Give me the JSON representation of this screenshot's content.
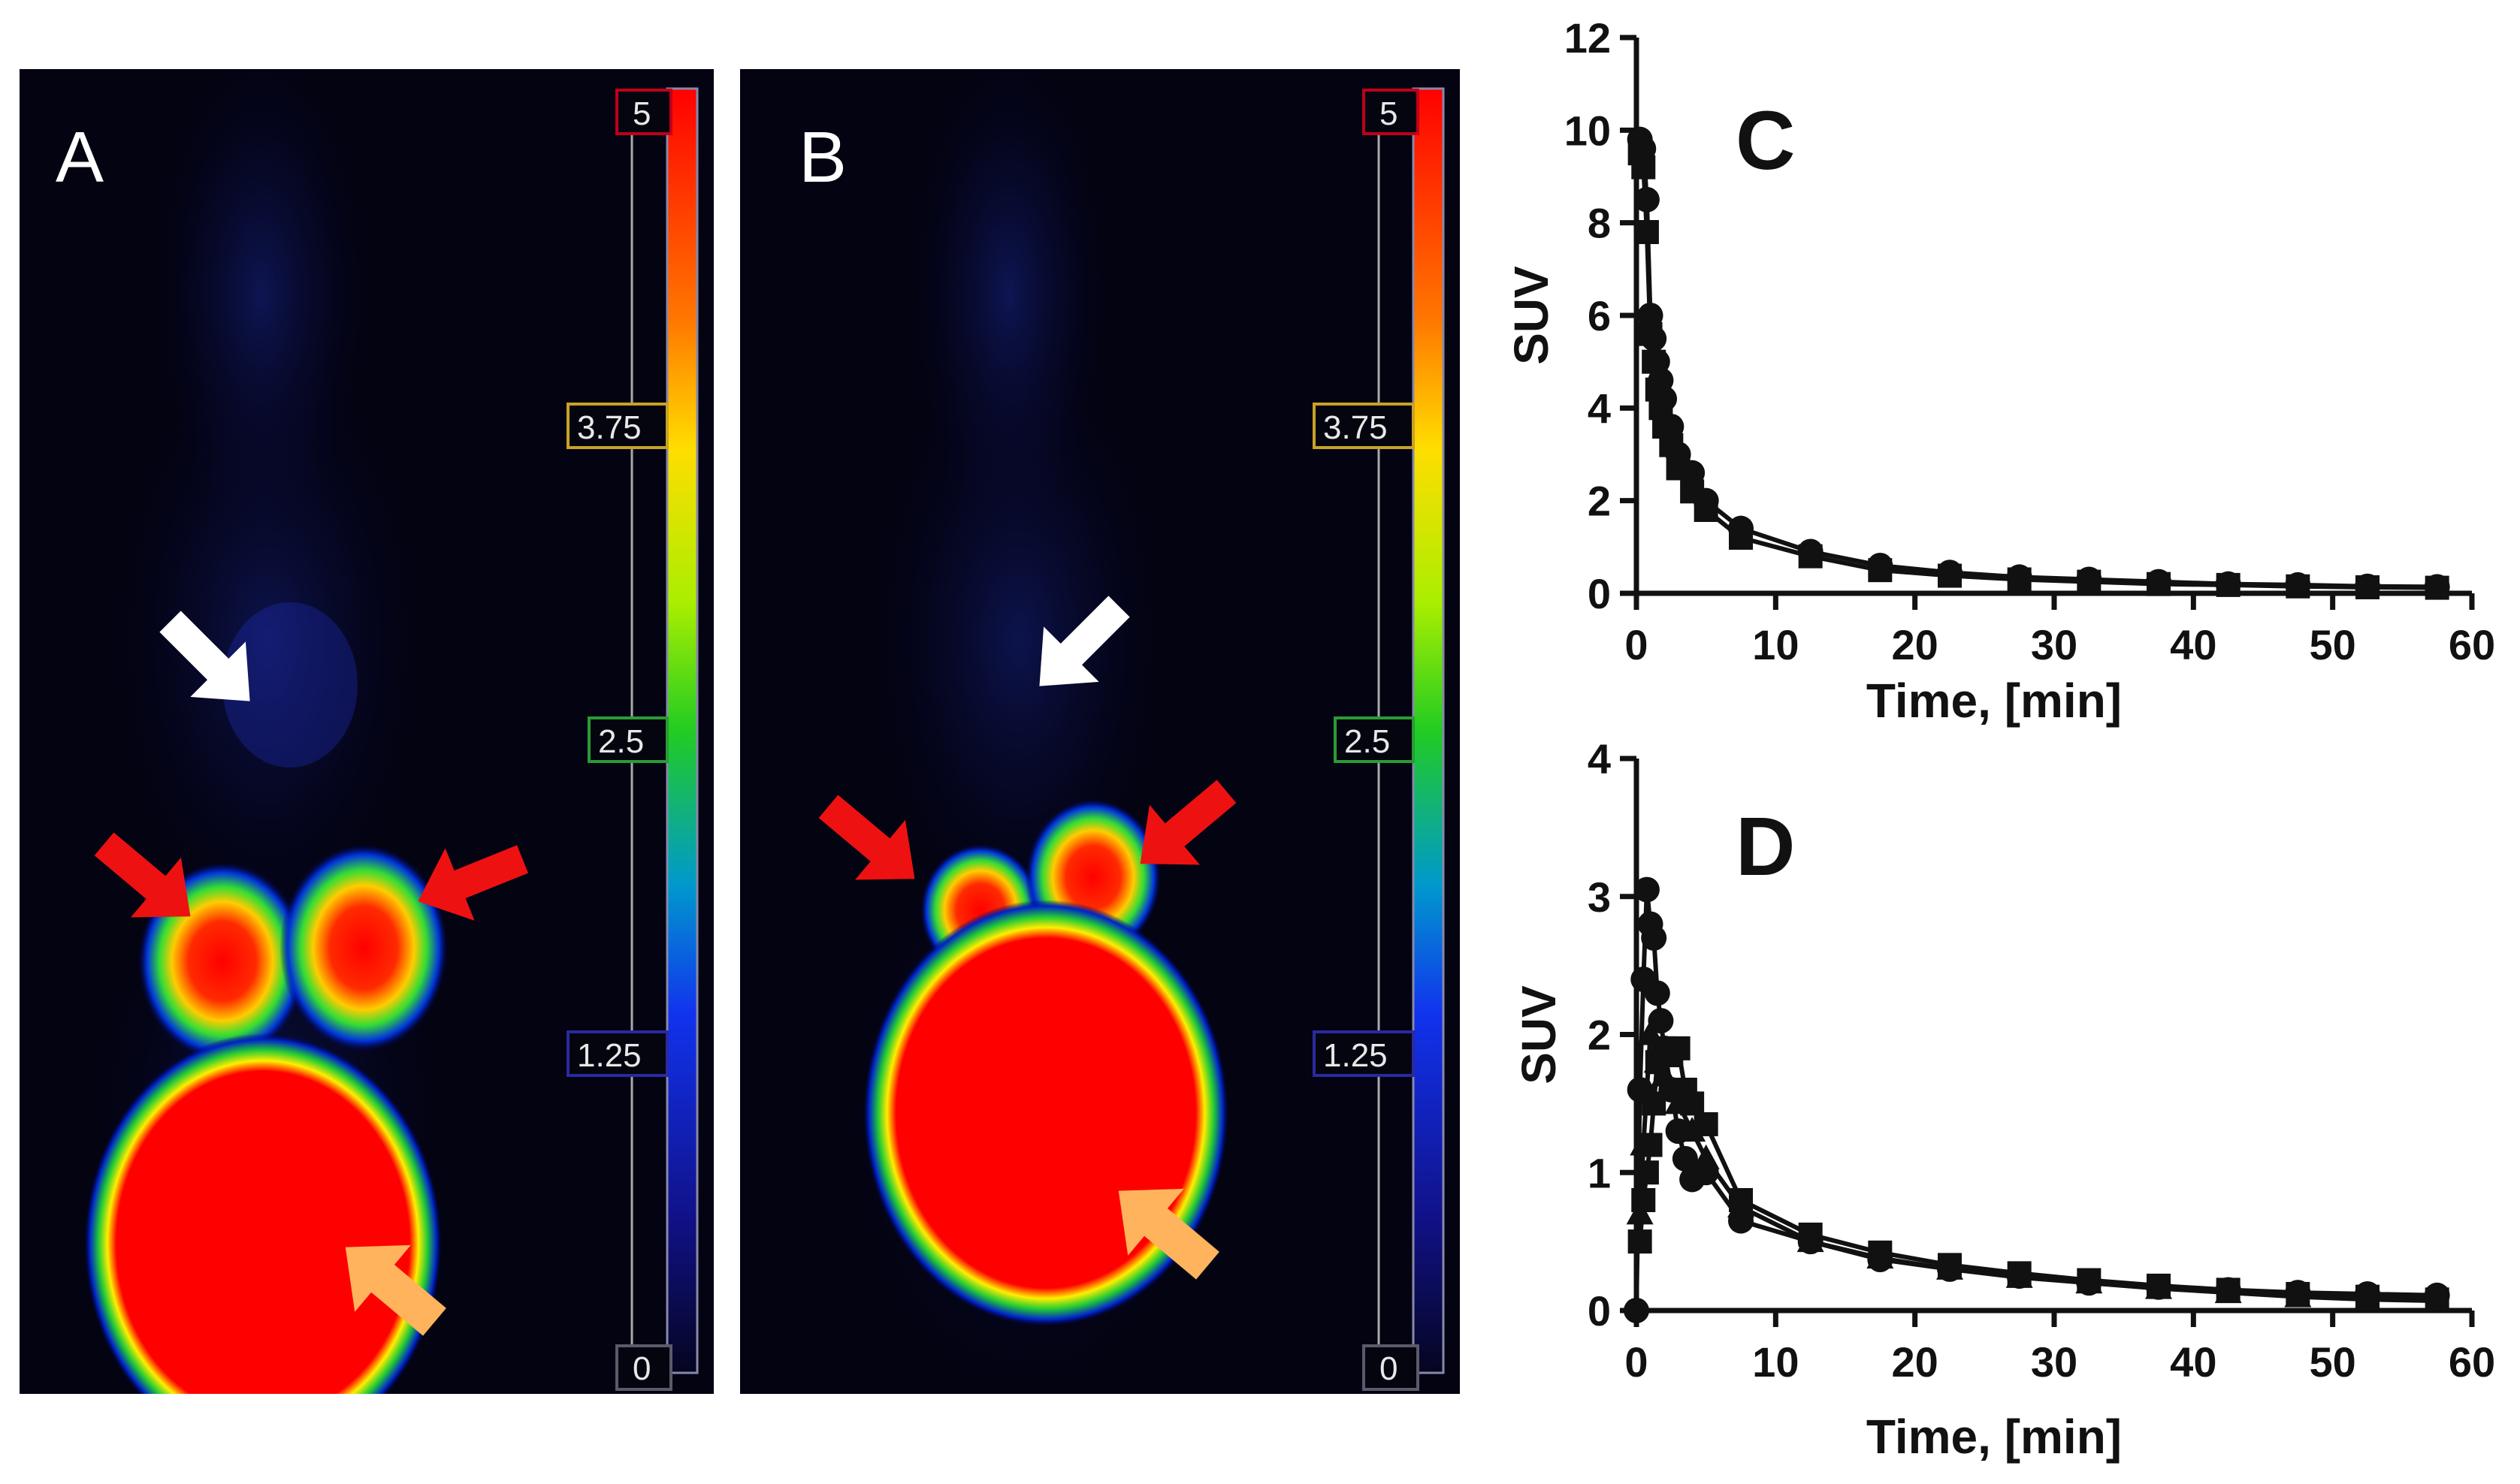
{
  "pet_images": [
    {
      "letter": "A",
      "color_scale": {
        "labels": [
          "5",
          "3.75",
          "2.5",
          "1.25",
          "0"
        ],
        "label_colors": [
          "#c0001a",
          "#c9a227",
          "#2a9a35",
          "#2a2aa0",
          "#5a5a6a"
        ]
      }
    },
    {
      "letter": "B",
      "color_scale": {
        "labels": [
          "5",
          "3.75",
          "2.5",
          "1.25",
          "0"
        ],
        "label_colors": [
          "#c0001a",
          "#c9a227",
          "#2a9a35",
          "#2a2aa0",
          "#5a5a6a"
        ]
      }
    }
  ],
  "arrow_colors": {
    "white": "#ffffff",
    "red": "#ee1111",
    "orange": "#ffb35c"
  },
  "chart_data": [
    {
      "type": "line",
      "panel_label": "C",
      "xlabel": "Time, [min]",
      "ylabel": "SUV",
      "xlim": [
        0,
        60
      ],
      "ylim": [
        0,
        12
      ],
      "xticks": [
        "0",
        "10",
        "20",
        "30",
        "40",
        "50",
        "60"
      ],
      "yticks": [
        "0",
        "2",
        "4",
        "6",
        "8",
        "10",
        "12"
      ],
      "series": [
        {
          "name": "circle",
          "marker": "circle",
          "x": [
            0.25,
            0.5,
            0.75,
            1.0,
            1.25,
            1.5,
            1.75,
            2.0,
            2.5,
            3.0,
            4.0,
            5.0,
            7.5,
            12.5,
            17.5,
            22.5,
            27.5,
            32.5,
            37.5,
            42.5,
            47.5,
            52.5,
            57.5
          ],
          "y": [
            9.8,
            9.6,
            8.5,
            6.0,
            5.5,
            5.0,
            4.6,
            4.2,
            3.6,
            3.0,
            2.6,
            2.0,
            1.4,
            0.9,
            0.6,
            0.45,
            0.35,
            0.3,
            0.25,
            0.2,
            0.18,
            0.15,
            0.14
          ]
        },
        {
          "name": "square",
          "marker": "square",
          "x": [
            0.25,
            0.5,
            0.75,
            1.0,
            1.25,
            1.5,
            1.75,
            2.0,
            2.5,
            3.0,
            4.0,
            5.0,
            7.5,
            12.5,
            17.5,
            22.5,
            27.5,
            32.5,
            37.5,
            42.5,
            47.5,
            52.5,
            57.5
          ],
          "y": [
            9.5,
            9.2,
            7.8,
            5.6,
            5.0,
            4.4,
            4.0,
            3.6,
            3.2,
            2.7,
            2.2,
            1.8,
            1.2,
            0.8,
            0.5,
            0.38,
            0.3,
            0.25,
            0.2,
            0.18,
            0.15,
            0.13,
            0.12
          ]
        }
      ]
    },
    {
      "type": "line",
      "panel_label": "D",
      "xlabel": "Time, [min]",
      "ylabel": "SUV",
      "xlim": [
        0,
        60
      ],
      "ylim": [
        0,
        4
      ],
      "xticks": [
        "0",
        "10",
        "20",
        "30",
        "40",
        "50",
        "60"
      ],
      "yticks": [
        "0",
        "1",
        "2",
        "3",
        "4"
      ],
      "series": [
        {
          "name": "circle",
          "marker": "circle",
          "x": [
            0.0,
            0.25,
            0.5,
            0.75,
            1.0,
            1.25,
            1.5,
            1.75,
            2.0,
            2.5,
            3.0,
            3.5,
            4.0,
            5.0,
            7.5,
            12.5,
            17.5,
            22.5,
            27.5,
            32.5,
            37.5,
            42.5,
            47.5,
            52.5,
            57.5
          ],
          "y": [
            0.0,
            1.6,
            2.4,
            3.05,
            2.8,
            2.7,
            2.3,
            2.1,
            1.9,
            1.6,
            1.3,
            1.1,
            0.95,
            1.0,
            0.65,
            0.5,
            0.37,
            0.3,
            0.25,
            0.2,
            0.17,
            0.15,
            0.13,
            0.12,
            0.11
          ]
        },
        {
          "name": "square",
          "marker": "square",
          "x": [
            0.25,
            0.5,
            0.75,
            1.0,
            1.25,
            1.5,
            2.0,
            2.5,
            3.0,
            3.5,
            4.0,
            5.0,
            7.5,
            12.5,
            17.5,
            22.5,
            27.5,
            32.5,
            37.5,
            42.5,
            47.5,
            52.5,
            57.5
          ],
          "y": [
            0.5,
            0.8,
            1.0,
            1.2,
            1.5,
            1.8,
            1.9,
            1.85,
            1.9,
            1.6,
            1.5,
            1.35,
            0.8,
            0.55,
            0.42,
            0.33,
            0.27,
            0.22,
            0.18,
            0.15,
            0.12,
            0.1,
            0.08
          ]
        },
        {
          "name": "triangle",
          "marker": "triangle",
          "x": [
            0.25,
            0.5,
            0.75,
            1.0,
            1.5,
            2.0,
            2.5,
            3.0,
            4.0,
            5.0,
            7.5,
            12.5,
            17.5,
            22.5,
            27.5,
            32.5,
            37.5,
            42.5,
            47.5,
            52.5,
            57.5
          ],
          "y": [
            0.7,
            1.2,
            1.6,
            2.0,
            1.8,
            1.7,
            1.6,
            1.5,
            1.3,
            1.1,
            0.75,
            0.5,
            0.38,
            0.3,
            0.24,
            0.2,
            0.16,
            0.13,
            0.1,
            0.08,
            0.07
          ]
        }
      ]
    }
  ]
}
